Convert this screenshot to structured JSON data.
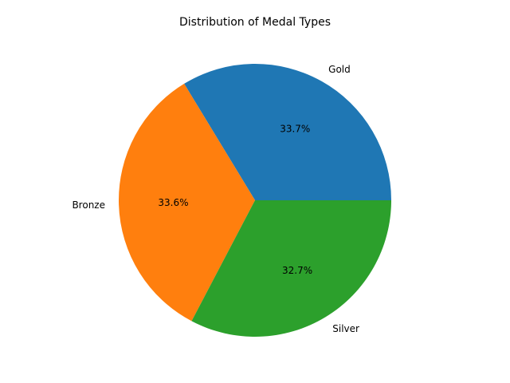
{
  "chart_data": {
    "type": "pie",
    "title": "Distribution of Medal Types",
    "slices": [
      {
        "label": "Gold",
        "value": 33.7,
        "pct_label": "33.7%",
        "color": "#1f77b4"
      },
      {
        "label": "Bronze",
        "value": 33.6,
        "pct_label": "33.6%",
        "color": "#ff7f0e"
      },
      {
        "label": "Silver",
        "value": 32.7,
        "pct_label": "32.7%",
        "color": "#2ca02c"
      }
    ],
    "start_angle": 0,
    "direction": "counterclockwise",
    "legend": "none"
  }
}
